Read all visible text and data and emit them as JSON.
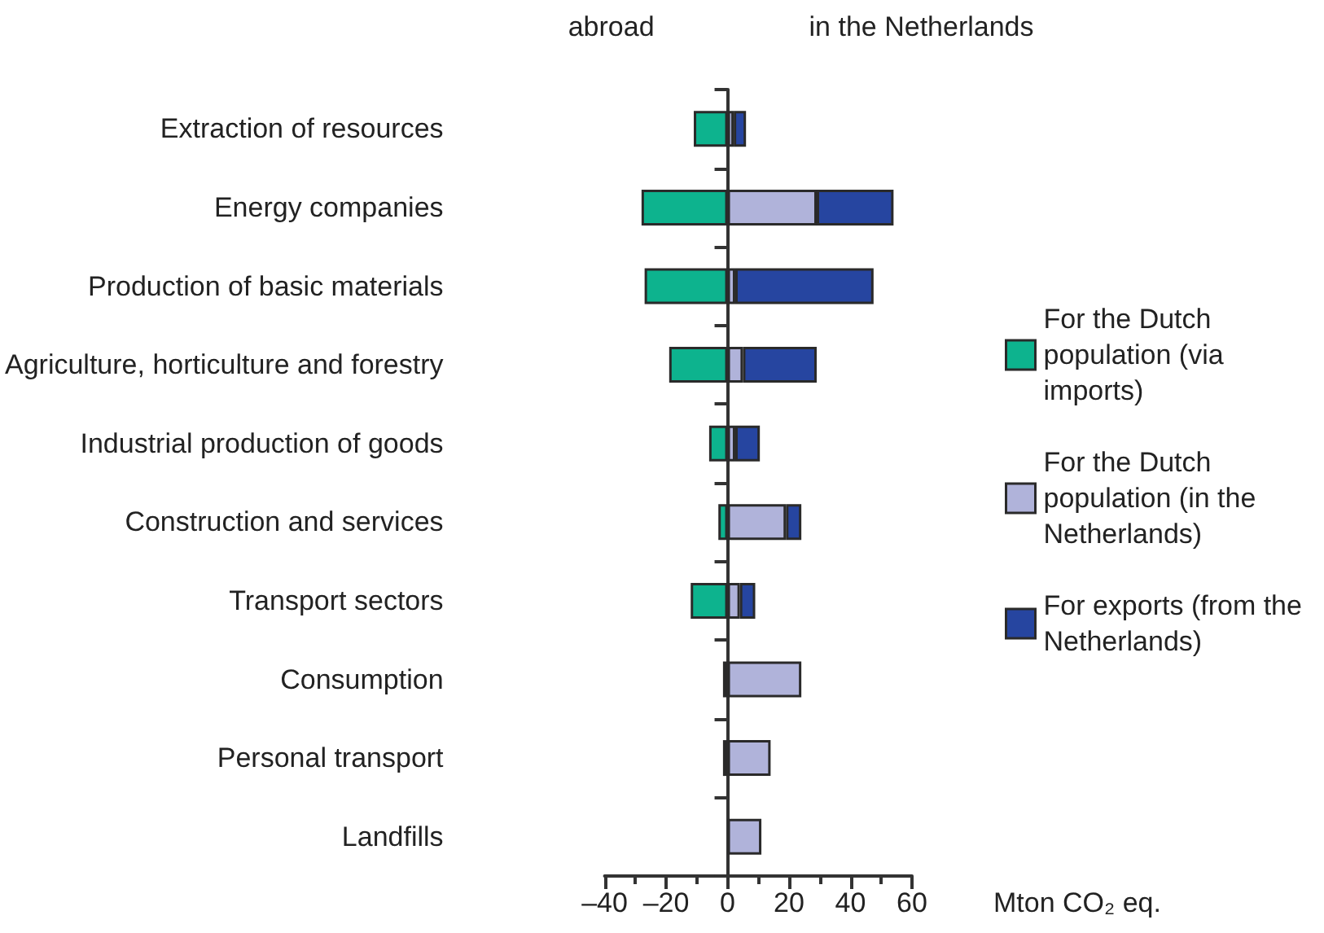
{
  "chart_data": {
    "type": "bar",
    "orientation": "horizontal",
    "stacked": true,
    "categories": [
      "Extraction of resources",
      "Energy companies",
      "Production of basic materials",
      "Agriculture, horticulture and forestry",
      "Industrial production of goods",
      "Construction and services",
      "Transport sectors",
      "Consumption",
      "Personal transport",
      "Landfills"
    ],
    "series": [
      {
        "name": "For the Dutch population (via imports)",
        "color": "#0db38e",
        "values": [
          -11,
          -28,
          -27,
          -19,
          -6,
          -3,
          -12,
          -1.5,
          -1.5,
          null
        ]
      },
      {
        "name": "For the Dutch population (in the Netherlands)",
        "color": "#b0b3da",
        "values": [
          2,
          29,
          2.5,
          5,
          2.5,
          19,
          4,
          24,
          14,
          11
        ]
      },
      {
        "name": "For exports (from the Netherlands)",
        "color": "#2645a0",
        "values": [
          4,
          25,
          45,
          24,
          8,
          5,
          5,
          null,
          null,
          null
        ]
      }
    ],
    "xlabel": "Mton CO₂ eq.",
    "xlim": [
      -40,
      60
    ],
    "xticks": [
      {
        "value": -40,
        "label": "–40"
      },
      {
        "value": -20,
        "label": "–20"
      },
      0,
      20,
      40,
      60
    ],
    "annotations": [
      "abroad",
      "in the Netherlands"
    ],
    "legend": "right"
  }
}
